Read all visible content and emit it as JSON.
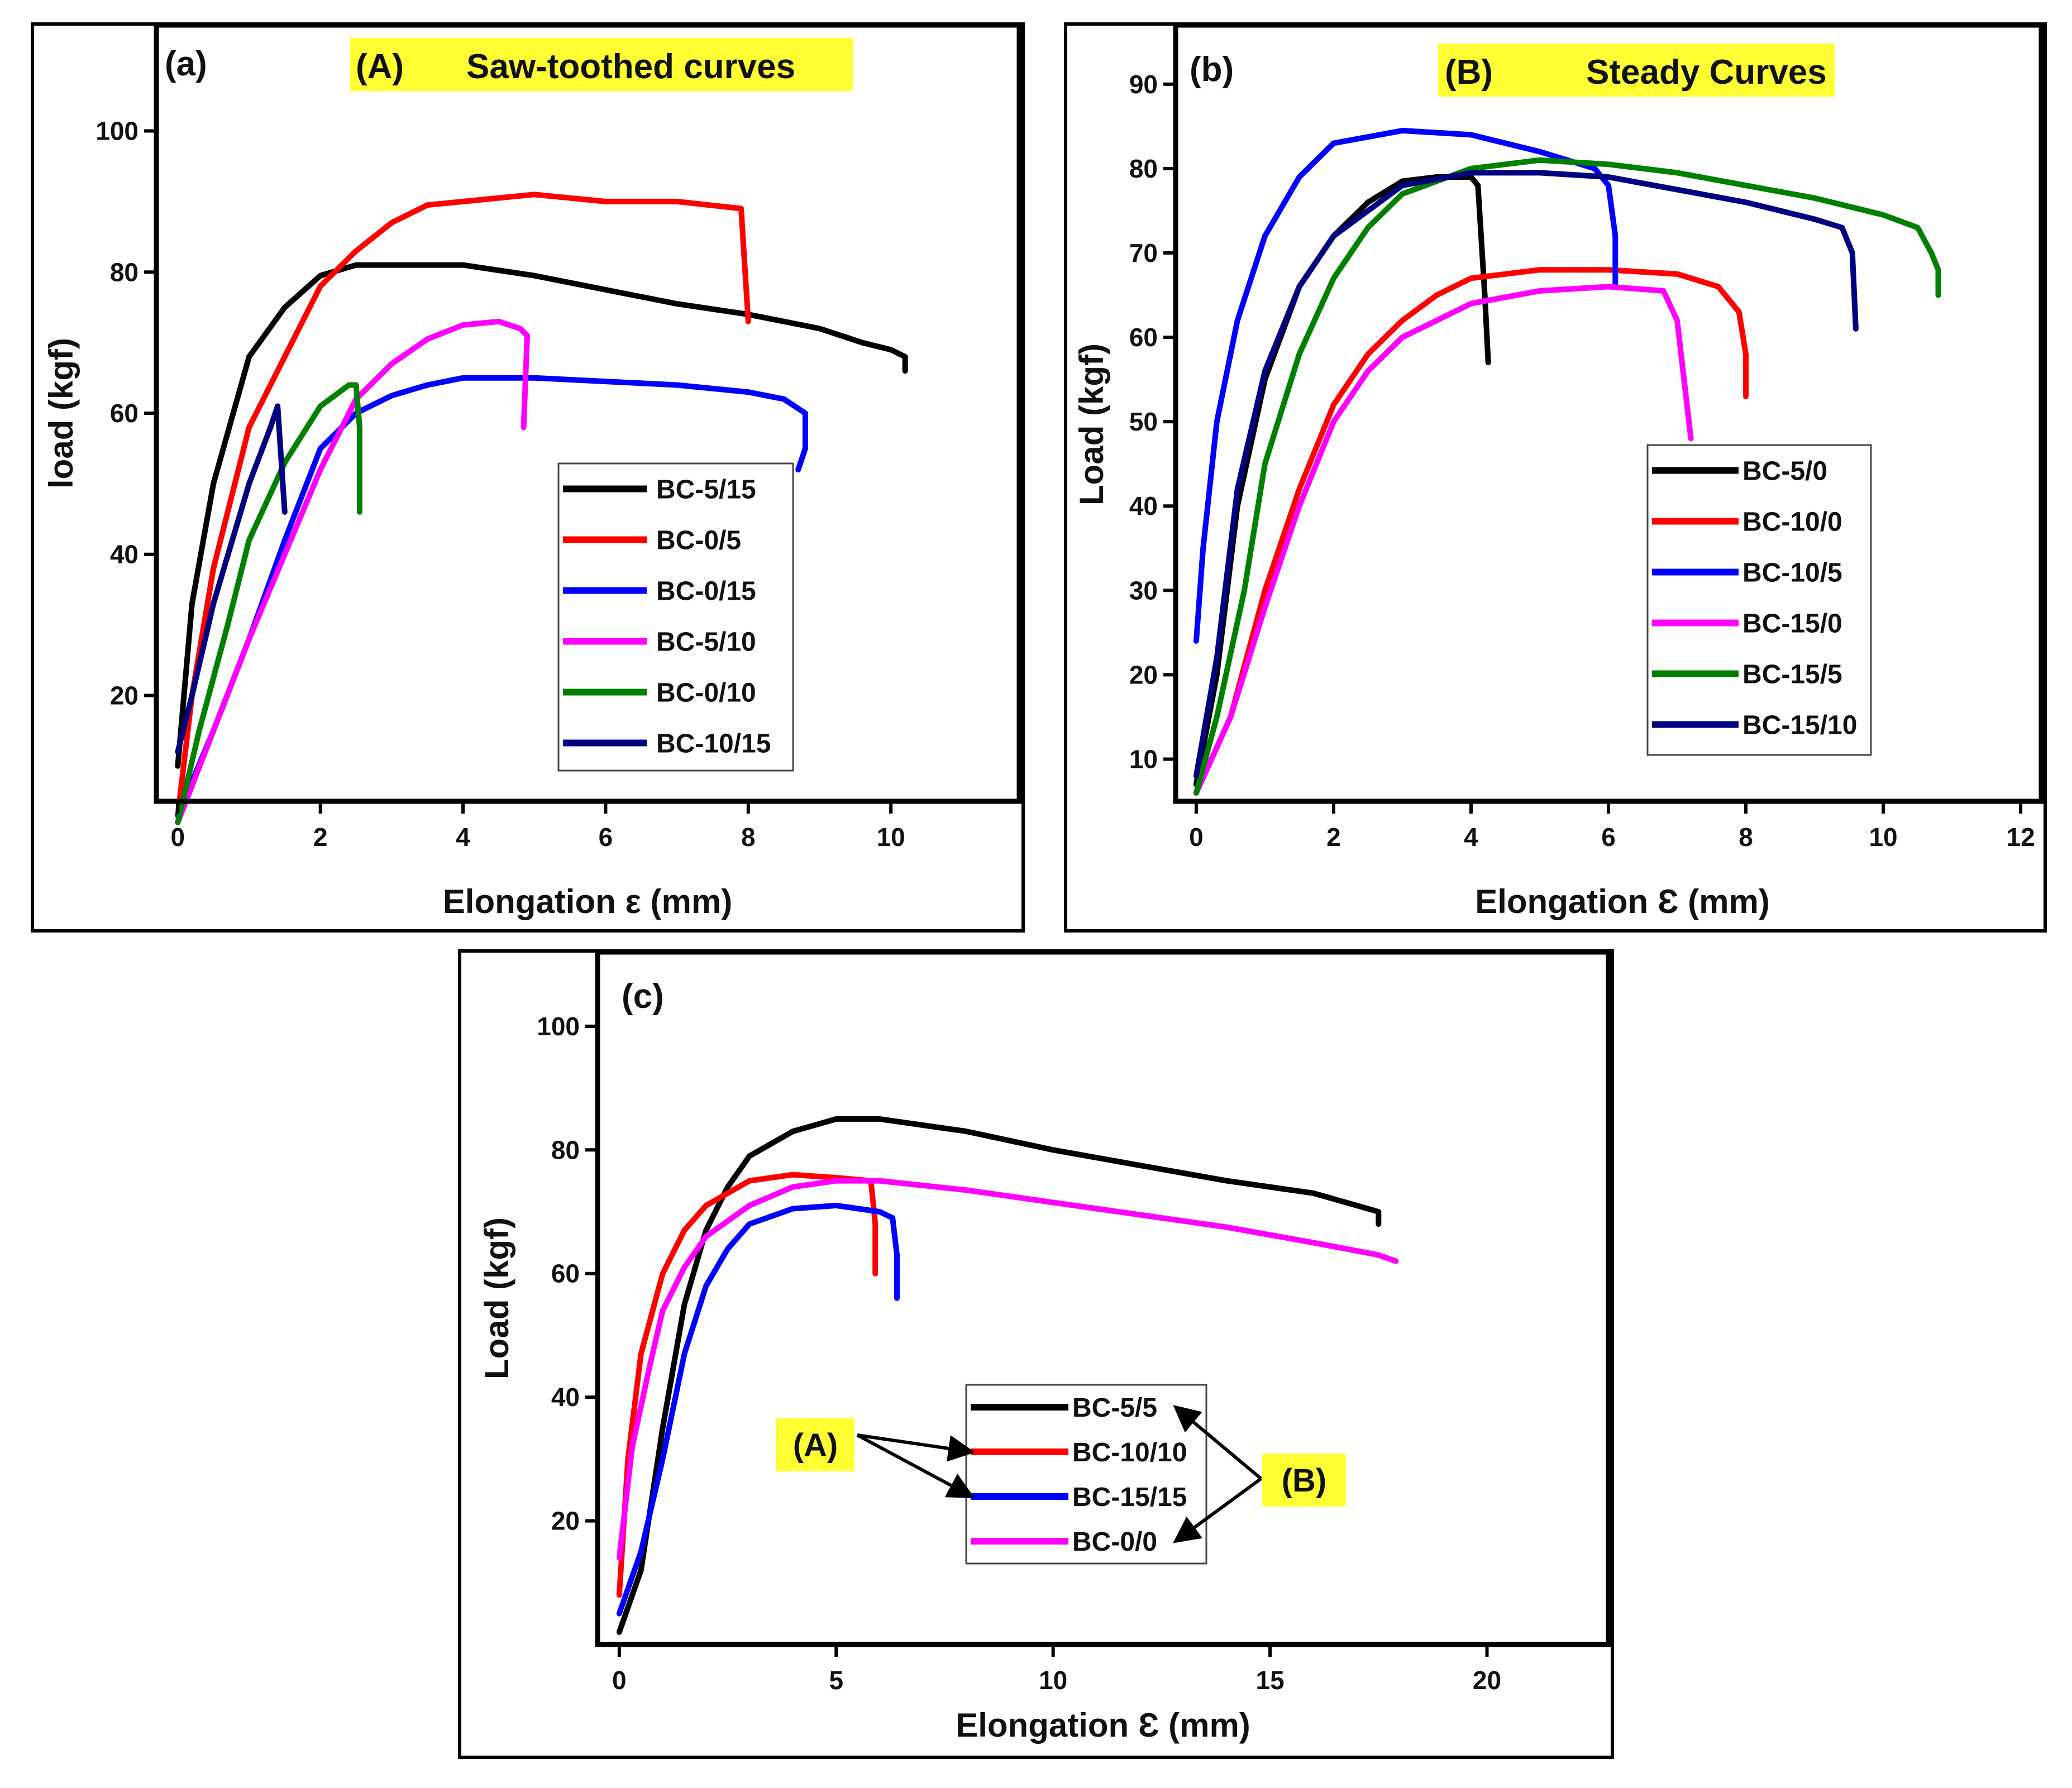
{
  "chart_data": [
    {
      "type": "line",
      "panel_label": "(a)",
      "title_tag": "(A)",
      "title": "Saw-toothed curves",
      "xlabel": "Elongation  ε (mm)",
      "ylabel": "load (kgf)",
      "xlim": [
        -0.3,
        11.8
      ],
      "ylim": [
        5,
        115
      ],
      "xticks": [
        0,
        2,
        4,
        6,
        8,
        10
      ],
      "yticks": [
        20,
        40,
        60,
        80,
        100
      ],
      "legend_position": "center-right",
      "series": [
        {
          "name": "BC-5/15",
          "color": "#000000",
          "x": [
            0,
            0.2,
            0.5,
            1.0,
            1.5,
            2.0,
            2.5,
            3.0,
            3.5,
            4.0,
            5.0,
            6.0,
            7.0,
            8.0,
            9.0,
            9.6,
            10.0,
            10.2,
            10.2
          ],
          "y": [
            10,
            33,
            50,
            68,
            75,
            79.5,
            81,
            81,
            81,
            81,
            79.5,
            77.5,
            75.5,
            74,
            72,
            70,
            69,
            68,
            66
          ]
        },
        {
          "name": "BC-0/5",
          "color": "#ff0000",
          "x": [
            0,
            0.2,
            0.5,
            1.0,
            1.5,
            2.0,
            2.5,
            3.0,
            3.5,
            4.0,
            5.0,
            6.0,
            7.0,
            7.9,
            8.0
          ],
          "y": [
            3,
            20,
            38,
            58,
            68,
            78,
            83,
            87,
            89.5,
            90,
            91,
            90,
            90,
            89,
            73
          ]
        },
        {
          "name": "BC-0/15",
          "color": "#0000ff",
          "x": [
            0,
            0.5,
            1.0,
            1.5,
            2.0,
            2.5,
            3.0,
            3.5,
            4.0,
            5.0,
            6.0,
            7.0,
            8.0,
            8.5,
            8.8,
            8.8,
            8.7
          ],
          "y": [
            3,
            15,
            28,
            42,
            55,
            60,
            62.5,
            64,
            65,
            65,
            64.5,
            64,
            63,
            62,
            60,
            55,
            52
          ]
        },
        {
          "name": "BC-5/10",
          "color": "#ff00ff",
          "x": [
            0,
            0.5,
            1.0,
            1.5,
            2.0,
            2.5,
            3.0,
            3.5,
            4.0,
            4.5,
            4.8,
            4.9,
            4.85
          ],
          "y": [
            2,
            15,
            28,
            40,
            52,
            62,
            67,
            70.5,
            72.5,
            73,
            72,
            71,
            58
          ]
        },
        {
          "name": "BC-0/10",
          "color": "#008000",
          "x": [
            0,
            0.3,
            0.7,
            1.0,
            1.5,
            2.0,
            2.4,
            2.5,
            2.55,
            2.55
          ],
          "y": [
            2,
            15,
            30,
            42,
            53,
            61,
            64,
            64,
            58,
            46
          ]
        },
        {
          "name": "BC-10/15",
          "color": "#000080",
          "x": [
            0,
            0.2,
            0.5,
            1.0,
            1.3,
            1.4,
            1.5
          ],
          "y": [
            12,
            20,
            33,
            50,
            58,
            61,
            46
          ]
        }
      ]
    },
    {
      "type": "line",
      "panel_label": "(b)",
      "title_tag": "(B)",
      "title": "Steady Curves",
      "xlabel": "Elongation Ɛ (mm)",
      "ylabel": "Load (kgf)",
      "xlim": [
        -0.3,
        12.3
      ],
      "ylim": [
        5,
        97
      ],
      "xticks": [
        0,
        2,
        4,
        6,
        8,
        10,
        12
      ],
      "yticks": [
        10,
        20,
        30,
        40,
        50,
        60,
        70,
        80,
        90
      ],
      "legend_position": "center",
      "series": [
        {
          "name": "BC-5/0",
          "color": "#000000",
          "x": [
            0,
            0.3,
            0.6,
            1.0,
            1.5,
            2.0,
            2.5,
            3.0,
            3.5,
            4.0,
            4.1,
            4.2,
            4.25
          ],
          "y": [
            7,
            20,
            40,
            55,
            66,
            72,
            76,
            78.5,
            79,
            79,
            78,
            65,
            57
          ]
        },
        {
          "name": "BC-10/0",
          "color": "#ff0000",
          "x": [
            0,
            0.5,
            1.0,
            1.5,
            2.0,
            2.5,
            3.0,
            3.5,
            4.0,
            5.0,
            6.0,
            7.0,
            7.6,
            7.9,
            8.0,
            8.0
          ],
          "y": [
            6,
            15,
            30,
            42,
            52,
            58,
            62,
            65,
            67,
            68,
            68,
            67.5,
            66,
            63,
            58,
            53
          ]
        },
        {
          "name": "BC-10/5",
          "color": "#0000ff",
          "x": [
            0,
            0.1,
            0.3,
            0.6,
            1.0,
            1.5,
            2.0,
            3.0,
            4.0,
            5.0,
            5.8,
            6.0,
            6.1,
            6.1
          ],
          "y": [
            24,
            35,
            50,
            62,
            72,
            79,
            83,
            84.5,
            84,
            82,
            80,
            78,
            72,
            66
          ]
        },
        {
          "name": "BC-15/0",
          "color": "#ff00ff",
          "x": [
            0,
            0.5,
            1.0,
            1.5,
            2.0,
            2.5,
            3.0,
            4.0,
            5.0,
            6.0,
            6.8,
            7.0,
            7.2
          ],
          "y": [
            6,
            15,
            28,
            40,
            50,
            56,
            60,
            64,
            65.5,
            66,
            65.5,
            62,
            48
          ]
        },
        {
          "name": "BC-15/5",
          "color": "#008000",
          "x": [
            0,
            0.3,
            0.7,
            1.0,
            1.5,
            2.0,
            2.5,
            3.0,
            4.0,
            5.0,
            6.0,
            7.0,
            8.0,
            9.0,
            10.0,
            10.5,
            10.7,
            10.8,
            10.8
          ],
          "y": [
            6,
            15,
            30,
            45,
            58,
            67,
            73,
            77,
            80,
            81,
            80.5,
            79.5,
            78,
            76.5,
            74.5,
            73,
            70,
            68,
            65
          ]
        },
        {
          "name": "BC-15/10",
          "color": "#000080",
          "x": [
            0,
            0.3,
            0.6,
            1.0,
            1.5,
            2.0,
            3.0,
            4.0,
            5.0,
            6.0,
            7.0,
            8.0,
            9.0,
            9.4,
            9.55,
            9.6
          ],
          "y": [
            8,
            22,
            42,
            56,
            66,
            72,
            78,
            79.5,
            79.5,
            79,
            77.5,
            76,
            74,
            73,
            70,
            61
          ]
        }
      ]
    },
    {
      "type": "line",
      "panel_label": "(c)",
      "xlabel": "Elongation Ɛ (mm)",
      "ylabel": "Load (kgf)",
      "xlim": [
        -0.5,
        22.8
      ],
      "ylim": [
        0,
        112
      ],
      "xticks": [
        0,
        5,
        10,
        15,
        20
      ],
      "yticks": [
        20,
        40,
        60,
        80,
        100
      ],
      "legend_position": "lower-center",
      "annotations": [
        {
          "label": "(A)",
          "targets": [
            "BC-10/10",
            "BC-15/15"
          ]
        },
        {
          "label": "(B)",
          "targets": [
            "BC-5/5",
            "BC-0/0"
          ]
        }
      ],
      "series": [
        {
          "name": "BC-5/5",
          "color": "#000000",
          "x": [
            0,
            0.5,
            1.0,
            1.5,
            2.0,
            2.5,
            3.0,
            4.0,
            5.0,
            6.0,
            8.0,
            10.0,
            12.0,
            14.0,
            16.0,
            17.0,
            17.5,
            17.5
          ],
          "y": [
            2,
            12,
            35,
            55,
            67,
            74,
            79,
            83,
            85,
            85,
            83,
            80,
            77.5,
            75,
            73,
            71,
            70,
            68
          ]
        },
        {
          "name": "BC-10/10",
          "color": "#ff0000",
          "x": [
            0,
            0.2,
            0.5,
            1.0,
            1.5,
            2.0,
            3.0,
            4.0,
            5.0,
            5.8,
            5.9,
            5.9
          ],
          "y": [
            8,
            30,
            47,
            60,
            67,
            71,
            75,
            76,
            75.5,
            75,
            68,
            60
          ]
        },
        {
          "name": "BC-15/15",
          "color": "#0000ff",
          "x": [
            0,
            0.5,
            1.0,
            1.5,
            2.0,
            2.5,
            3.0,
            4.0,
            5.0,
            6.0,
            6.3,
            6.4,
            6.4
          ],
          "y": [
            5,
            15,
            30,
            47,
            58,
            64,
            68,
            70.5,
            71,
            70,
            69,
            63,
            56
          ]
        },
        {
          "name": "BC-0/0",
          "color": "#ff00ff",
          "x": [
            0,
            0.3,
            0.7,
            1.0,
            1.5,
            2.0,
            3.0,
            4.0,
            5.0,
            6.0,
            8.0,
            10.0,
            12.0,
            14.0,
            16.0,
            17.5,
            17.9
          ],
          "y": [
            14,
            32,
            45,
            54,
            61,
            66,
            71,
            74,
            75,
            75,
            73.5,
            71.5,
            69.5,
            67.5,
            65,
            63,
            62
          ]
        }
      ]
    }
  ]
}
